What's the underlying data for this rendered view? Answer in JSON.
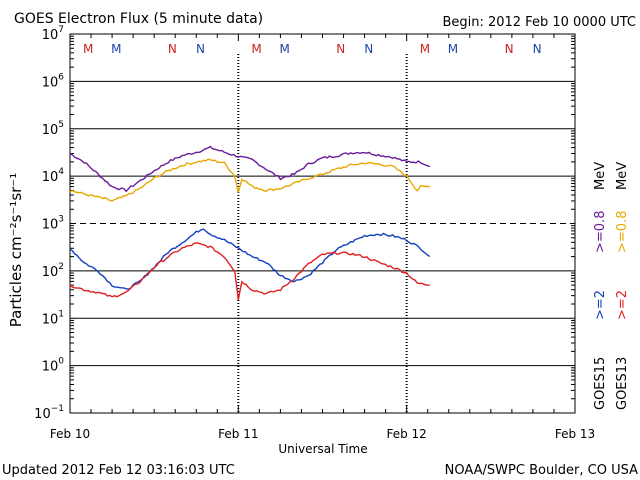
{
  "chart_data": {
    "type": "line",
    "title": "GOES Electron Flux (5 minute data)",
    "begin_label": "Begin: 2012 Feb 10 0000 UTC",
    "xlabel": "Universal Time",
    "ylabel": "Particles cm⁻²s⁻¹sr⁻¹",
    "updated": "Updated 2012 Feb 12 03:16:03 UTC",
    "credit": "NOAA/SWPC Boulder, CO USA",
    "yscale": "log",
    "ylim_exp": [
      -1,
      7
    ],
    "y_tick_exponents": [
      7,
      6,
      5,
      4,
      3,
      2,
      1,
      0,
      -1
    ],
    "threshold_exp": 3,
    "xlim_hours": [
      0,
      72
    ],
    "x_ticks": [
      {
        "hour": 0,
        "label": "Feb 10"
      },
      {
        "hour": 24,
        "label": "Feb 11"
      },
      {
        "hour": 48,
        "label": "Feb 12"
      },
      {
        "hour": 72,
        "label": "Feb 13"
      }
    ],
    "local_time_markers": [
      {
        "hour": 2.6,
        "label": "M",
        "color": "#cc2222"
      },
      {
        "hour": 6.6,
        "label": "M",
        "color": "#2244aa"
      },
      {
        "hour": 14.6,
        "label": "N",
        "color": "#cc2222"
      },
      {
        "hour": 18.6,
        "label": "N",
        "color": "#2244aa"
      },
      {
        "hour": 26.6,
        "label": "M",
        "color": "#cc2222"
      },
      {
        "hour": 30.6,
        "label": "M",
        "color": "#2244aa"
      },
      {
        "hour": 38.6,
        "label": "N",
        "color": "#cc2222"
      },
      {
        "hour": 42.6,
        "label": "N",
        "color": "#2244aa"
      },
      {
        "hour": 50.6,
        "label": "M",
        "color": "#cc2222"
      },
      {
        "hour": 54.6,
        "label": "M",
        "color": "#2244aa"
      },
      {
        "hour": 62.6,
        "label": "N",
        "color": "#cc2222"
      },
      {
        "hour": 66.6,
        "label": "N",
        "color": "#2244aa"
      }
    ],
    "legend": {
      "sat_primary": "GOES15",
      "sat_secondary": "GOES13",
      "primary_low": ">=2",
      "primary_high": ">=0.8",
      "secondary_low": ">=2",
      "secondary_high": ">=0.8",
      "unit": "MeV"
    },
    "series": [
      {
        "name": "GOES15 >=0.8 MeV",
        "color": "#6a1b9a",
        "x": [
          0,
          2,
          4,
          6,
          8,
          10,
          12,
          14,
          16,
          18,
          20,
          22,
          24,
          26,
          28,
          30,
          32,
          34,
          36,
          38,
          40,
          42,
          44,
          46,
          48,
          50,
          51.3
        ],
        "y": [
          30000,
          20000,
          11000,
          6000,
          5000,
          8000,
          13000,
          20000,
          27000,
          32000,
          40000,
          32000,
          26000,
          22000,
          14000,
          9000,
          11000,
          18000,
          24000,
          27000,
          31000,
          32000,
          28000,
          25000,
          20000,
          20000,
          16000
        ]
      },
      {
        "name": "GOES13 >=0.8 MeV",
        "color": "#e8a800",
        "x": [
          0,
          2,
          4,
          6,
          8,
          10,
          12,
          14,
          16,
          18,
          20,
          22,
          23.5,
          24,
          24.5,
          26,
          28,
          30,
          32,
          34,
          36,
          38,
          40,
          42,
          44,
          46,
          48,
          49.5,
          50,
          51.3
        ],
        "y": [
          5000,
          4200,
          3600,
          3000,
          3800,
          5500,
          9000,
          13000,
          17000,
          20000,
          22000,
          19000,
          10000,
          4500,
          9000,
          6000,
          5000,
          5500,
          7000,
          9000,
          11000,
          14000,
          17000,
          19000,
          18000,
          16000,
          10000,
          5000,
          6000,
          6000
        ]
      },
      {
        "name": "GOES15 >=2 MeV",
        "color": "#1040c0",
        "x": [
          0,
          2,
          4,
          6,
          8,
          10,
          12,
          14,
          16,
          18,
          19,
          20,
          22,
          24,
          26,
          28,
          30,
          32,
          34,
          36,
          38,
          40,
          42,
          44,
          46,
          48,
          50,
          51.3
        ],
        "y": [
          300,
          150,
          100,
          50,
          40,
          60,
          120,
          250,
          400,
          650,
          800,
          600,
          450,
          300,
          200,
          150,
          80,
          60,
          80,
          150,
          280,
          400,
          550,
          600,
          550,
          450,
          300,
          200
        ]
      },
      {
        "name": "GOES13 >=2 MeV",
        "color": "#e02020",
        "x": [
          0,
          2,
          4,
          6,
          8,
          10,
          12,
          14,
          16,
          18,
          20,
          22,
          23.5,
          24,
          24.5,
          26,
          28,
          30,
          32,
          34,
          36,
          38,
          40,
          42,
          44,
          46,
          48,
          49.5,
          51.3
        ],
        "y": [
          50,
          40,
          35,
          28,
          35,
          60,
          120,
          200,
          300,
          380,
          320,
          200,
          100,
          25,
          60,
          40,
          33,
          40,
          70,
          140,
          220,
          240,
          230,
          200,
          150,
          120,
          90,
          55,
          50
        ]
      }
    ]
  }
}
